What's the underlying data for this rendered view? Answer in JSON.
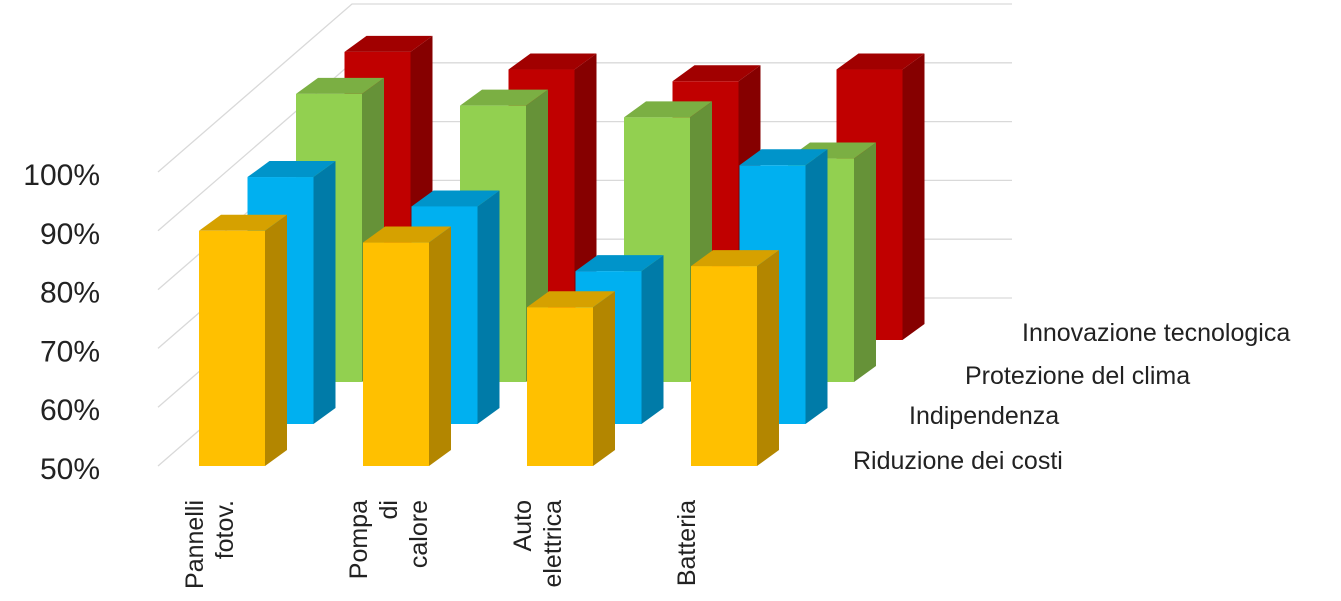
{
  "chart_data": {
    "type": "bar",
    "subtype": "3d-column",
    "title": "",
    "ylim": [
      50,
      100
    ],
    "yticks": [
      "50%",
      "60%",
      "70%",
      "80%",
      "90%",
      "100%"
    ],
    "grid": true,
    "categories": [
      [
        "Pannelli",
        "fotov."
      ],
      [
        "Pompa",
        "di",
        "calore"
      ],
      [
        "Auto",
        "elettrica"
      ],
      [
        "Batteria"
      ]
    ],
    "series": [
      {
        "name": "Riduzione dei costi",
        "color": "#FFC000",
        "values": [
          90,
          88,
          77,
          84
        ]
      },
      {
        "name": "Indipendenza",
        "color": "#00B0F0",
        "values": [
          92,
          87,
          76,
          94
        ]
      },
      {
        "name": "Protezione del clima",
        "color": "#92D050",
        "values": [
          99,
          97,
          95,
          88
        ]
      },
      {
        "name": "Innovazione tecnologica",
        "color": "#C00000",
        "values": [
          99,
          96,
          94,
          96
        ]
      }
    ]
  }
}
